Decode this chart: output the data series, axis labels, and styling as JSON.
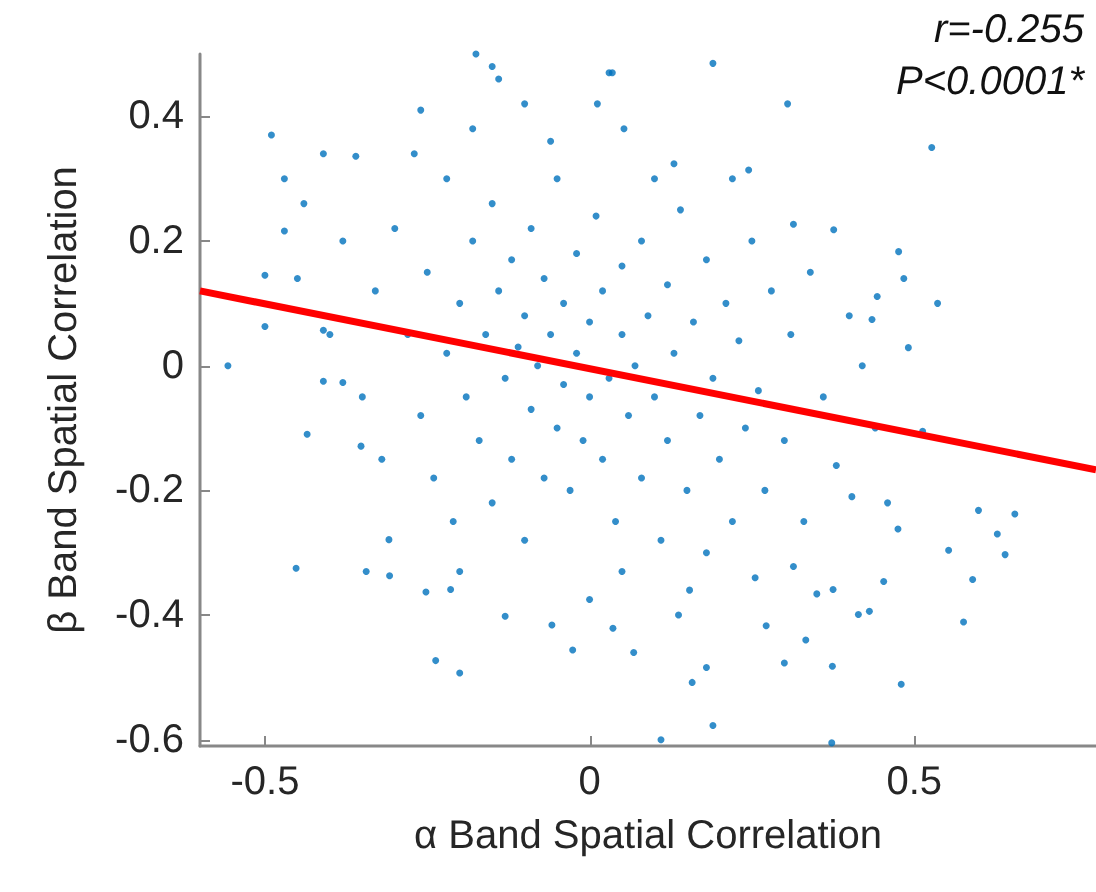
{
  "chart_data": {
    "type": "scatter",
    "xlabel": "α Band Spatial Correlation",
    "ylabel": "β Band Spatial Correlation",
    "annotations": [
      "r=-0.255",
      "P<0.0001*"
    ],
    "xlim": [
      -0.6,
      0.78
    ],
    "ylim": [
      -0.61,
      0.5
    ],
    "xticks": [
      -0.5,
      0,
      0.5
    ],
    "yticks": [
      -0.6,
      -0.4,
      -0.2,
      0,
      0.2,
      0.4
    ],
    "grid": false,
    "marker": "circle",
    "series": [
      {
        "color": "#0072bd",
        "x": [
          -0.557,
          -0.49,
          -0.5,
          -0.5,
          -0.47,
          -0.47,
          -0.175,
          -0.15,
          -0.14,
          0.035,
          0.012,
          -0.1,
          -0.26,
          -0.41,
          -0.44,
          -0.45,
          -0.41,
          -0.38,
          -0.41,
          -0.36,
          0.19,
          0.03,
          0.305,
          0.527,
          0.053,
          0.536,
          0.476,
          0.484,
          0.443,
          0.376,
          0.314,
          0.491,
          0.435,
          0.245,
          0.13,
          -0.452,
          -0.435,
          -0.237,
          -0.2,
          -0.252,
          -0.13,
          -0.058,
          -0.026,
          0.036,
          0.068,
          -0.344,
          -0.308,
          -0.352,
          -0.309,
          -0.214,
          0,
          0.599,
          0.655,
          0.628,
          0.64,
          0.553,
          0.59,
          0.576,
          0.48,
          0.374,
          0.3,
          0.19,
          0.11,
          0.373,
          0.158,
          0.18,
          0.333,
          0.272,
          0.414,
          0.431,
          0.35,
          0.375,
          0.453,
          0.459,
          0.475,
          0.513,
          0.404,
          0.314,
          0.255,
          0.154,
          0.137,
          -0.3,
          -0.28,
          -0.26,
          -0.25,
          -0.24,
          -0.22,
          -0.22,
          -0.21,
          -0.2,
          -0.19,
          -0.18,
          -0.17,
          -0.16,
          -0.15,
          -0.15,
          -0.14,
          -0.13,
          -0.12,
          -0.12,
          -0.11,
          -0.1,
          -0.1,
          -0.09,
          -0.09,
          -0.08,
          -0.07,
          -0.07,
          -0.06,
          -0.05,
          -0.05,
          -0.04,
          -0.04,
          -0.03,
          -0.02,
          -0.02,
          -0.01,
          0,
          0,
          0.01,
          0.02,
          0.02,
          0.03,
          0.04,
          0.05,
          0.05,
          0.06,
          0.07,
          0.08,
          0.08,
          0.09,
          0.1,
          0.11,
          0.12,
          0.12,
          0.13,
          0.14,
          0.15,
          0.16,
          0.17,
          0.18,
          0.19,
          0.2,
          0.21,
          0.22,
          0.23,
          0.24,
          0.25,
          0.26,
          0.27,
          0.28,
          0.3,
          0.31,
          0.33,
          0.34,
          0.36,
          0.38,
          0.4,
          -0.33,
          -0.35,
          -0.38,
          -0.32,
          -0.27,
          -0.18,
          -0.06,
          0.1,
          0.22,
          0.42,
          0.44,
          -0.4,
          -0.2,
          0.05,
          0.18
        ],
        "values": [
          0,
          0.37,
          0.145,
          0.063,
          0.3,
          0.216,
          0.5,
          0.48,
          0.46,
          0.47,
          0.42,
          0.42,
          0.41,
          0.34,
          0.26,
          0.14,
          -0.025,
          -0.027,
          0.057,
          0.336,
          0.485,
          0.47,
          0.42,
          0.35,
          0.38,
          0.1,
          0.183,
          0.14,
          0.111,
          0.218,
          0.227,
          0.029,
          0.074,
          0.314,
          0.324,
          -0.325,
          -0.11,
          -0.473,
          -0.493,
          -0.363,
          -0.402,
          -0.416,
          -0.456,
          -0.421,
          -0.46,
          -0.33,
          -0.337,
          -0.129,
          -0.279,
          -0.359,
          -0.375,
          -0.232,
          -0.238,
          -0.27,
          -0.303,
          -0.296,
          -0.343,
          -0.411,
          -0.511,
          -0.482,
          -0.477,
          -0.577,
          -0.6,
          -0.605,
          -0.508,
          -0.484,
          -0.44,
          -0.417,
          -0.399,
          -0.394,
          -0.366,
          -0.359,
          -0.346,
          -0.22,
          -0.262,
          -0.105,
          -0.21,
          -0.322,
          -0.34,
          -0.36,
          -0.4,
          0.22,
          0.05,
          -0.08,
          0.15,
          -0.18,
          0.3,
          0.02,
          -0.25,
          0.1,
          -0.05,
          0.2,
          -0.12,
          0.05,
          0.26,
          -0.22,
          0.12,
          -0.02,
          0.17,
          -0.15,
          0.03,
          0.08,
          -0.28,
          0.22,
          -0.07,
          0,
          0.14,
          -0.18,
          0.05,
          -0.1,
          0.3,
          0.1,
          -0.03,
          -0.2,
          0.18,
          0.02,
          -0.12,
          0.07,
          -0.05,
          0.24,
          -0.15,
          0.12,
          -0.02,
          -0.25,
          0.05,
          0.16,
          -0.08,
          0,
          -0.18,
          0.2,
          0.08,
          -0.05,
          -0.28,
          0.13,
          -0.12,
          0.02,
          0.25,
          -0.2,
          0.07,
          -0.08,
          0.17,
          -0.02,
          -0.15,
          0.1,
          -0.25,
          0.04,
          -0.1,
          0.2,
          -0.04,
          -0.2,
          0.12,
          -0.12,
          0.05,
          -0.25,
          0.15,
          -0.05,
          -0.16,
          0.08,
          0.12,
          -0.05,
          0.2,
          -0.15,
          0.34,
          0.38,
          0.36,
          0.3,
          0.3,
          0,
          -0.1,
          0.05,
          -0.33,
          -0.33,
          -0.3
        ]
      },
      {
        "type": "line",
        "color": "#ff0000",
        "marker": "none",
        "x": [
          -0.6,
          0.78
        ],
        "values": [
          0.12,
          -0.167
        ]
      }
    ]
  }
}
